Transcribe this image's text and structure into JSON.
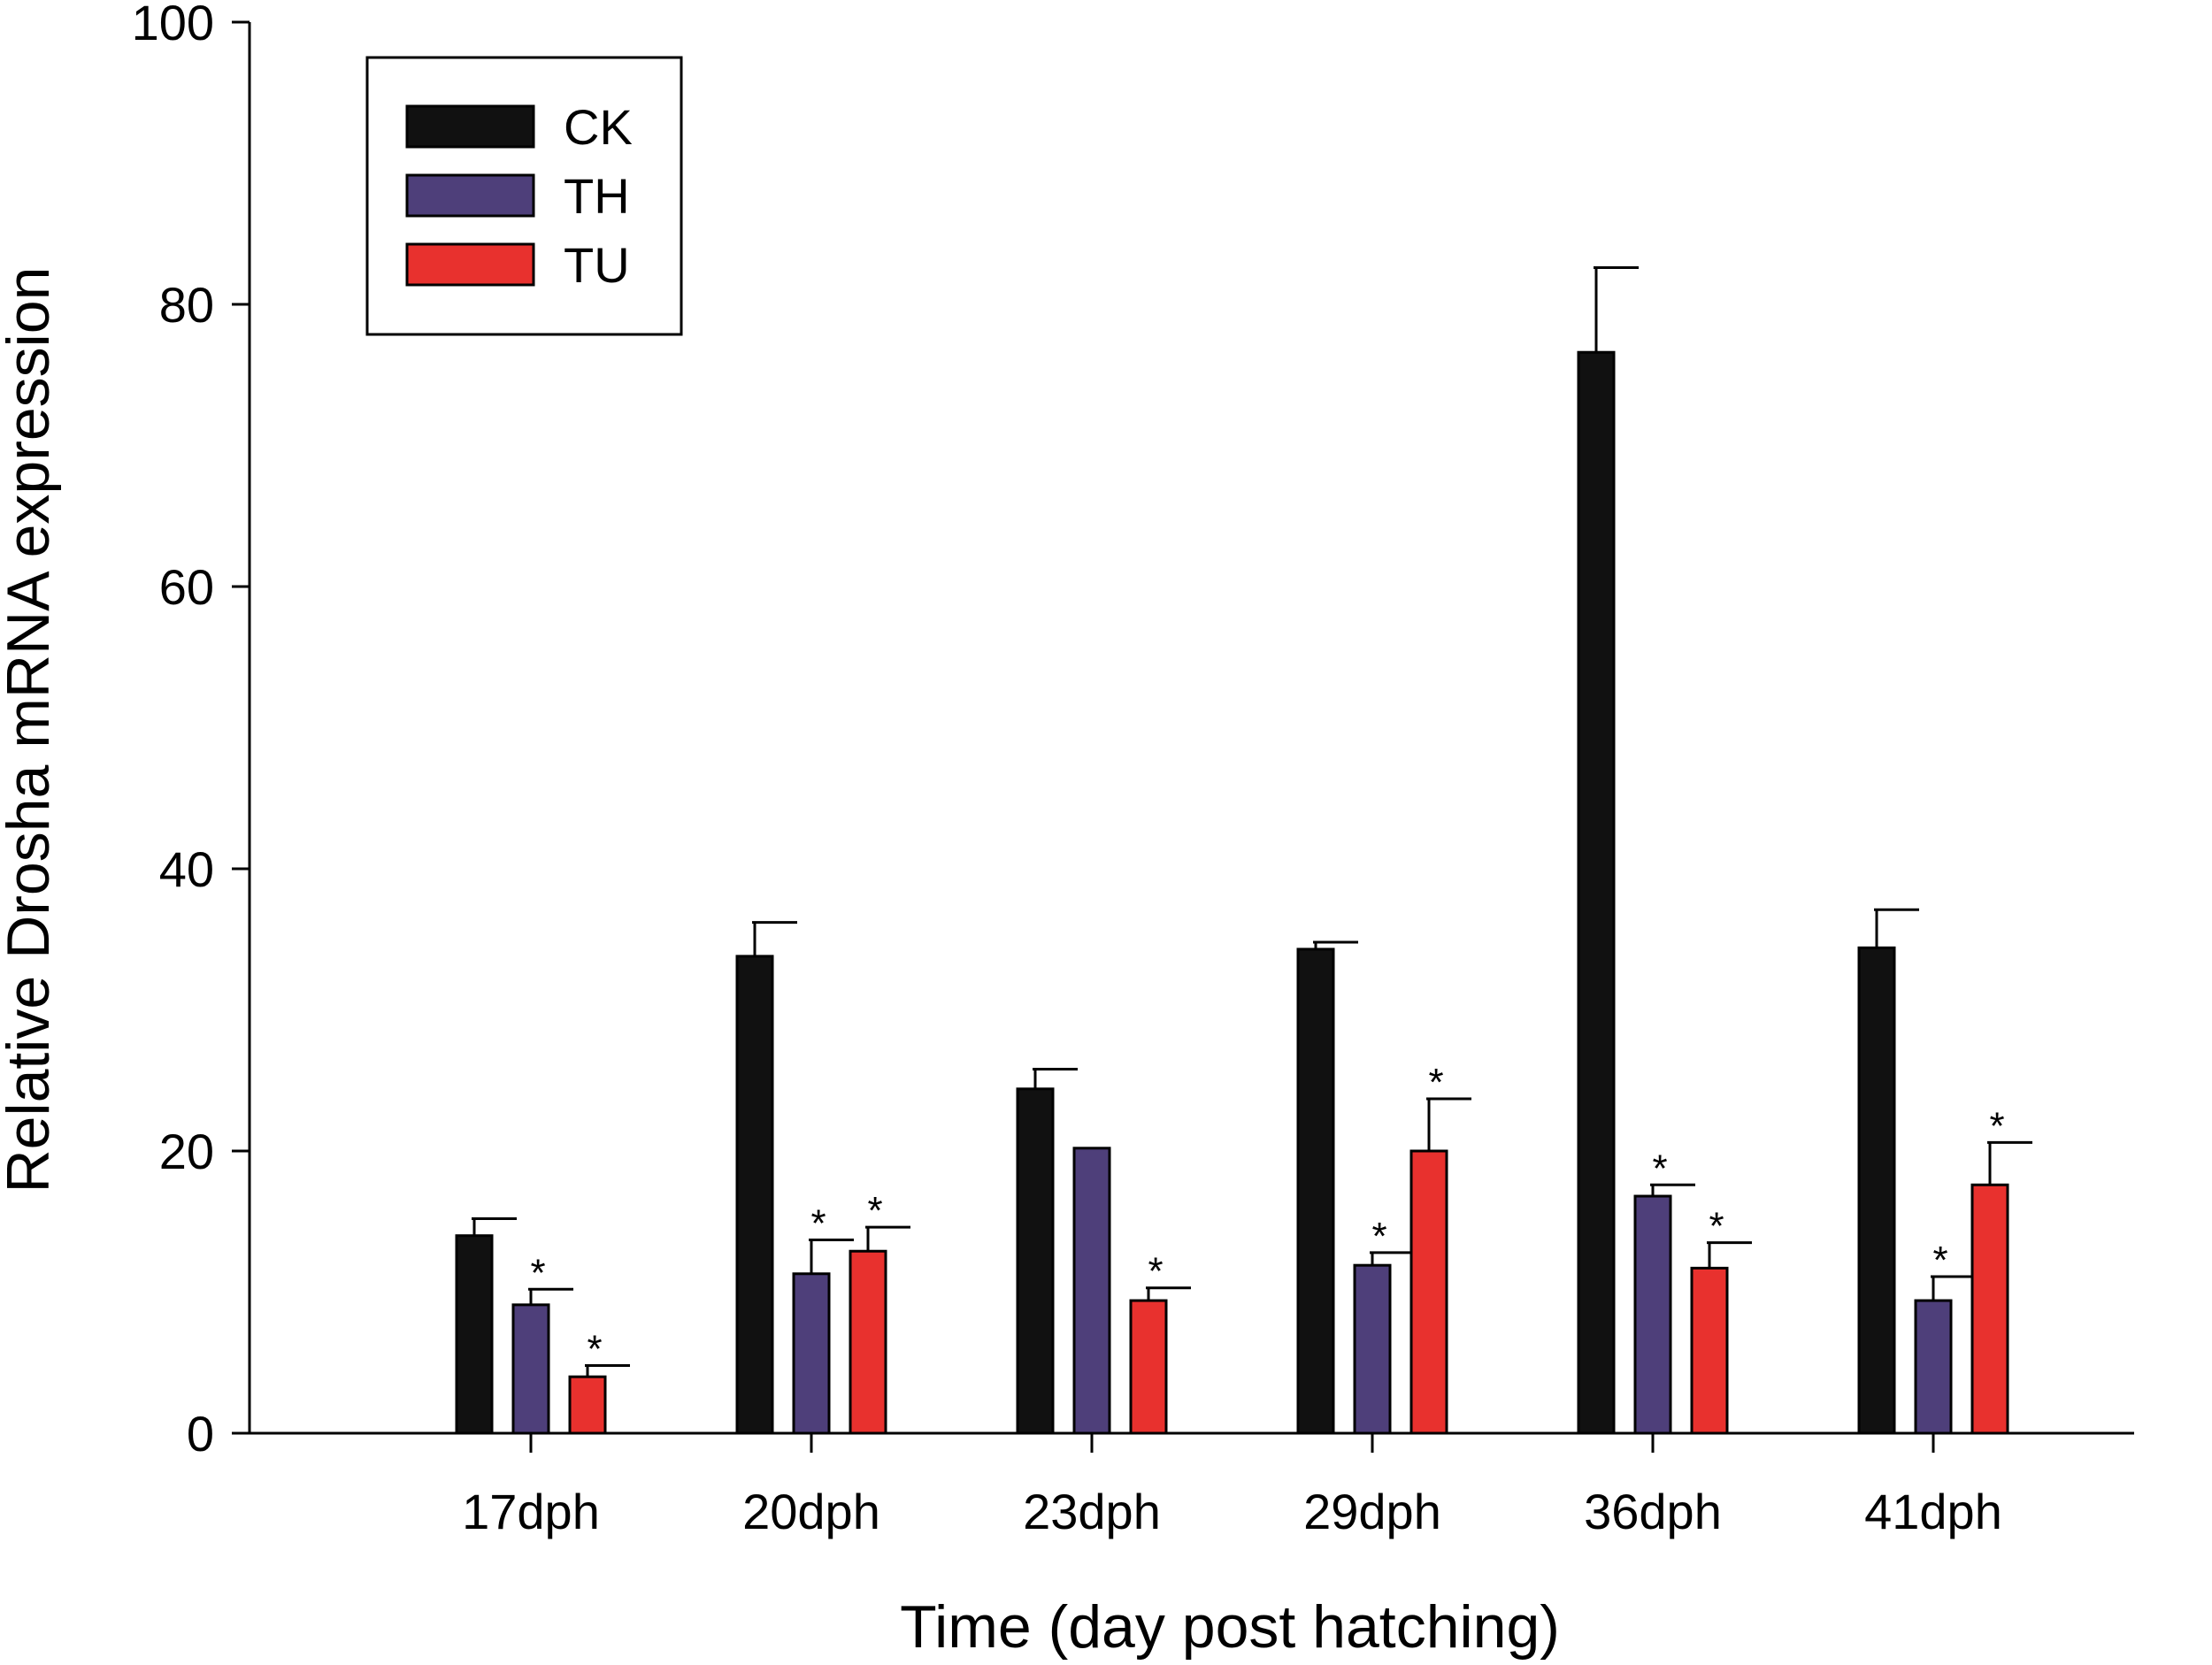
{
  "chart_data": {
    "type": "bar",
    "title": "",
    "xlabel": "Time (day post hatching)",
    "ylabel": "Relative Drosha  mRNA expression",
    "categories": [
      "17dph",
      "20dph",
      "23dph",
      "29dph",
      "36dph",
      "41dph"
    ],
    "ylim": [
      0,
      100
    ],
    "yticks": [
      0,
      20,
      40,
      60,
      80,
      100
    ],
    "grid": false,
    "legend_position": "top-left",
    "series": [
      {
        "name": "CK",
        "color": "#111111",
        "values": [
          14,
          33.8,
          24.4,
          34.3,
          76.6,
          34.4
        ],
        "errors": [
          1.2,
          2.4,
          1.4,
          0.5,
          6.0,
          2.7
        ],
        "significant": [
          false,
          false,
          false,
          false,
          false,
          false
        ]
      },
      {
        "name": "TH",
        "color": "#4e3f7a",
        "values": [
          9.1,
          11.3,
          20.2,
          11.9,
          16.8,
          9.4
        ],
        "errors": [
          1.1,
          2.4,
          0,
          0.9,
          0.8,
          1.7
        ],
        "significant": [
          true,
          true,
          false,
          true,
          true,
          true
        ]
      },
      {
        "name": "TU",
        "color": "#e8312e",
        "values": [
          4.0,
          12.9,
          9.4,
          20.0,
          11.7,
          17.6
        ],
        "errors": [
          0.8,
          1.7,
          0.9,
          3.7,
          1.8,
          3.0
        ],
        "significant": [
          true,
          true,
          true,
          true,
          true,
          true
        ]
      }
    ],
    "significance_marker": "*"
  }
}
